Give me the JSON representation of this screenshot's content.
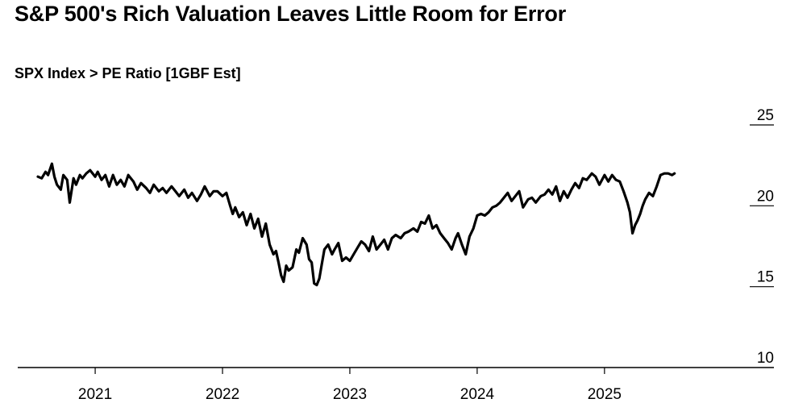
{
  "title": "S&P 500's Rich Valuation Leaves Little Room for Error",
  "subtitle": "SPX Index > PE Ratio [1GBF Est]",
  "colors": {
    "line": "#000000",
    "axis": "#000000",
    "background": "#ffffff"
  },
  "chart_data": {
    "type": "line",
    "title": "S&P 500's Rich Valuation Leaves Little Room for Error",
    "subtitle": "SPX Index > PE Ratio [1GBF Est]",
    "xlabel": "",
    "ylabel": "",
    "ylim": [
      10,
      25
    ],
    "xlim": [
      2020.55,
      2025.9
    ],
    "yticks": [
      25,
      20,
      15,
      10
    ],
    "xticks": [
      {
        "value": 2021.0,
        "label": "2021"
      },
      {
        "value": 2022.0,
        "label": "2022"
      },
      {
        "value": 2023.0,
        "label": "2023"
      },
      {
        "value": 2024.0,
        "label": "2024"
      },
      {
        "value": 2025.0,
        "label": "2025"
      }
    ],
    "y_axis_position": "right",
    "grid": false,
    "series": [
      {
        "x": [
          2020.55,
          2020.58,
          2020.61,
          2020.63,
          2020.66,
          2020.68,
          2020.7,
          2020.73,
          2020.75,
          2020.78,
          2020.8,
          2020.83,
          2020.85,
          2020.88,
          2020.9,
          2020.93,
          2020.96,
          2021.0,
          2021.02,
          2021.05,
          2021.08,
          2021.11,
          2021.14,
          2021.17,
          2021.2,
          2021.23,
          2021.26,
          2021.3,
          2021.33,
          2021.36,
          2021.4,
          2021.43,
          2021.46,
          2021.5,
          2021.53,
          2021.56,
          2021.6,
          2021.63,
          2021.66,
          2021.7,
          2021.73,
          2021.76,
          2021.8,
          2021.83,
          2021.86,
          2021.9,
          2021.93,
          2021.96,
          2022.0,
          2022.03,
          2022.06,
          2022.08,
          2022.1,
          2022.13,
          2022.16,
          2022.19,
          2022.22,
          2022.25,
          2022.28,
          2022.31,
          2022.34,
          2022.37,
          2022.4,
          2022.42,
          2022.44,
          2022.46,
          2022.48,
          2022.5,
          2022.52,
          2022.55,
          2022.58,
          2022.6,
          2022.63,
          2022.66,
          2022.68,
          2022.7,
          2022.72,
          2022.74,
          2022.76,
          2022.78,
          2022.8,
          2022.83,
          2022.86,
          2022.88,
          2022.91,
          2022.94,
          2022.97,
          2023.0,
          2023.03,
          2023.06,
          2023.09,
          2023.12,
          2023.15,
          2023.18,
          2023.21,
          2023.24,
          2023.27,
          2023.3,
          2023.33,
          2023.36,
          2023.4,
          2023.43,
          2023.46,
          2023.5,
          2023.53,
          2023.56,
          2023.59,
          2023.62,
          2023.65,
          2023.68,
          2023.71,
          2023.74,
          2023.77,
          2023.8,
          2023.83,
          2023.85,
          2023.88,
          2023.91,
          2023.94,
          2023.97,
          2024.0,
          2024.03,
          2024.06,
          2024.09,
          2024.12,
          2024.15,
          2024.18,
          2024.21,
          2024.24,
          2024.27,
          2024.3,
          2024.33,
          2024.36,
          2024.4,
          2024.43,
          2024.46,
          2024.5,
          2024.53,
          2024.56,
          2024.59,
          2024.62,
          2024.65,
          2024.68,
          2024.71,
          2024.74,
          2024.77,
          2024.8,
          2024.83,
          2024.86,
          2024.9,
          2024.93,
          2024.96,
          2025.0,
          2025.03,
          2025.06,
          2025.09,
          2025.12,
          2025.15,
          2025.18,
          2025.2,
          2025.22,
          2025.24,
          2025.26,
          2025.28,
          2025.3,
          2025.32,
          2025.35,
          2025.38,
          2025.41,
          2025.44,
          2025.47,
          2025.5,
          2025.53,
          2025.55
        ],
        "values": [
          21.8,
          21.7,
          22.1,
          21.9,
          22.6,
          21.8,
          21.3,
          21.0,
          21.9,
          21.6,
          20.2,
          21.7,
          21.3,
          21.9,
          21.7,
          22.0,
          22.2,
          21.8,
          22.1,
          21.6,
          21.9,
          21.2,
          21.9,
          21.3,
          21.6,
          21.2,
          21.9,
          21.5,
          21.0,
          21.4,
          21.1,
          20.8,
          21.3,
          20.9,
          21.1,
          20.8,
          21.2,
          20.9,
          20.6,
          21.0,
          20.5,
          20.8,
          20.3,
          20.7,
          21.2,
          20.6,
          20.9,
          20.9,
          20.6,
          20.8,
          20.0,
          19.5,
          19.9,
          19.3,
          19.6,
          18.8,
          19.5,
          18.6,
          19.2,
          18.1,
          18.9,
          17.6,
          17.0,
          17.2,
          16.5,
          15.7,
          15.3,
          16.3,
          16.0,
          16.2,
          17.3,
          17.1,
          18.0,
          17.6,
          16.7,
          16.5,
          15.2,
          15.1,
          15.5,
          16.4,
          17.3,
          17.6,
          17.0,
          17.3,
          17.7,
          16.6,
          16.8,
          16.6,
          17.0,
          17.4,
          17.8,
          17.6,
          17.2,
          18.1,
          17.3,
          17.6,
          17.9,
          17.3,
          18.0,
          18.2,
          18.0,
          18.3,
          18.4,
          18.6,
          18.4,
          19.0,
          18.9,
          19.4,
          18.6,
          18.8,
          18.3,
          18.0,
          17.7,
          17.3,
          18.0,
          18.3,
          17.6,
          17.0,
          18.1,
          18.6,
          19.4,
          19.5,
          19.4,
          19.6,
          19.9,
          20.0,
          20.2,
          20.5,
          20.8,
          20.3,
          20.6,
          20.9,
          19.9,
          20.4,
          20.5,
          20.2,
          20.6,
          20.7,
          21.0,
          20.7,
          21.2,
          20.3,
          20.9,
          20.5,
          21.0,
          21.4,
          21.1,
          21.7,
          21.6,
          22.0,
          21.8,
          21.3,
          21.9,
          21.5,
          21.9,
          21.6,
          21.5,
          20.9,
          20.2,
          19.6,
          18.3,
          18.8,
          19.1,
          19.5,
          20.0,
          20.4,
          20.8,
          20.6,
          21.2,
          21.9,
          22.0,
          22.0,
          21.9,
          22.0
        ]
      }
    ]
  }
}
